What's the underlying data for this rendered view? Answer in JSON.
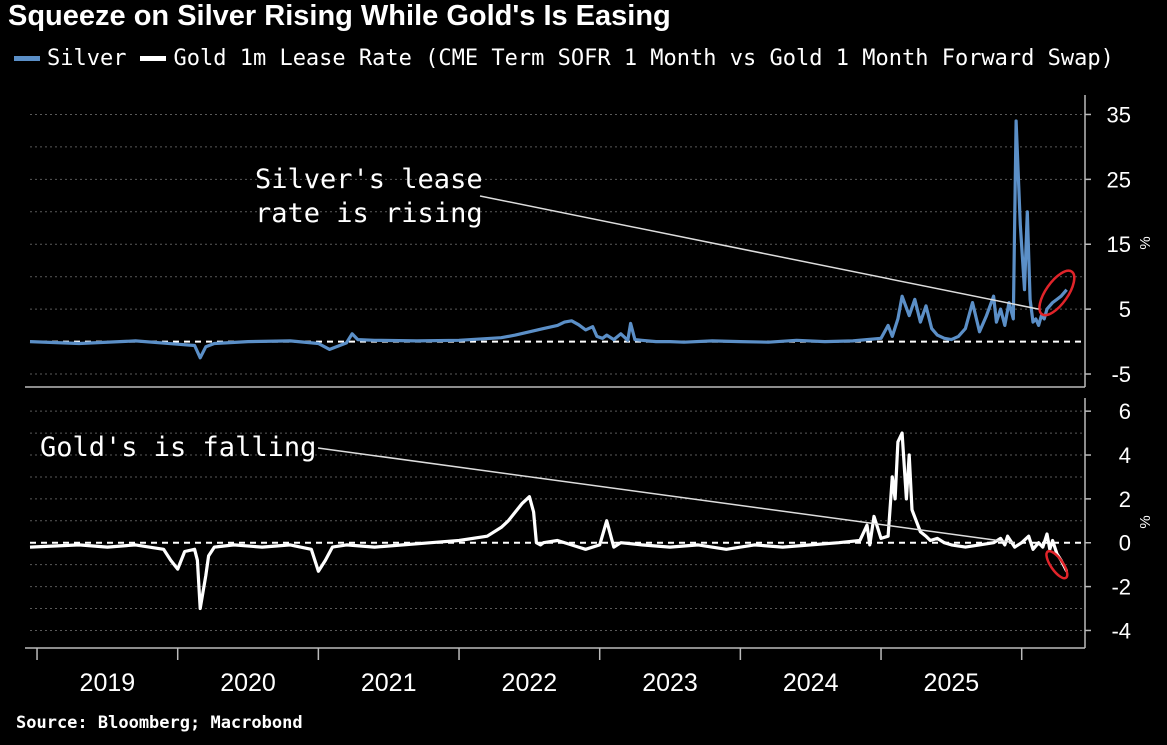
{
  "title": "Squeeze on Silver Rising While Gold's Is Easing",
  "legend": [
    {
      "label": "Silver",
      "color": "#5b8fc7"
    },
    {
      "label": "Gold 1m Lease Rate (CME Term SOFR 1 Month vs Gold 1 Month Forward Swap)",
      "color": "#ffffff"
    }
  ],
  "source": "Source: Bloomberg; Macrobond",
  "chart_data": [
    {
      "type": "line",
      "series_name": "Silver",
      "color": "#5b8fc7",
      "ylabel": "%",
      "ylim": [
        -7,
        38
      ],
      "yticks": [
        35,
        25,
        15,
        5,
        -5
      ],
      "zero_line": true,
      "grid": true,
      "annotation": {
        "line1": "Silver's lease",
        "line2": "rate is rising",
        "target": {
          "x": 2025.62,
          "y": 5.0
        }
      },
      "highlight": {
        "x": 2025.75,
        "y": 7.5
      },
      "x": [
        2018.45,
        2018.8,
        2019.2,
        2019.5,
        2019.62,
        2019.66,
        2019.7,
        2019.76,
        2020.0,
        2020.3,
        2020.5,
        2020.58,
        2020.7,
        2020.74,
        2020.78,
        2020.9,
        2021.2,
        2021.5,
        2021.8,
        2021.9,
        2022.0,
        2022.1,
        2022.2,
        2022.25,
        2022.3,
        2022.35,
        2022.4,
        2022.45,
        2022.48,
        2022.52,
        2022.55,
        2022.6,
        2022.65,
        2022.7,
        2022.72,
        2022.75,
        2022.8,
        2022.9,
        2023.0,
        2023.1,
        2023.3,
        2023.5,
        2023.7,
        2023.9,
        2024.1,
        2024.3,
        2024.5,
        2024.55,
        2024.58,
        2024.62,
        2024.65,
        2024.7,
        2024.74,
        2024.78,
        2024.82,
        2024.86,
        2024.9,
        2024.95,
        2025.0,
        2025.05,
        2025.1,
        2025.15,
        2025.2,
        2025.25,
        2025.3,
        2025.32,
        2025.35,
        2025.38,
        2025.41,
        2025.44,
        2025.46,
        2025.49,
        2025.52,
        2025.54,
        2025.56,
        2025.58,
        2025.6,
        2025.62,
        2025.64,
        2025.66,
        2025.68,
        2025.72,
        2025.75,
        2025.78,
        2025.82
      ],
      "y": [
        0,
        -0.3,
        0.1,
        -0.4,
        -0.6,
        -2.5,
        -0.8,
        -0.3,
        0,
        0.1,
        -0.3,
        -1.2,
        -0.2,
        1.2,
        0.3,
        0.2,
        0.1,
        0.2,
        0.6,
        1.0,
        1.5,
        2.0,
        2.5,
        3.0,
        3.2,
        2.6,
        1.8,
        2.3,
        0.8,
        0.5,
        1.0,
        0.3,
        1.2,
        0.2,
        2.8,
        0.3,
        0.2,
        0,
        0,
        -0.1,
        0.1,
        0,
        -0.1,
        0.2,
        0,
        0.1,
        0.5,
        2.5,
        0.8,
        3.5,
        7.0,
        4.0,
        6.5,
        3.0,
        5.5,
        2.0,
        1.0,
        0.5,
        0.3,
        0.8,
        2.0,
        6.0,
        1.5,
        4.0,
        7.0,
        3.0,
        5.0,
        2.5,
        6.0,
        3.5,
        34.0,
        18.0,
        8.0,
        20.0,
        6.5,
        3.0,
        3.5,
        2.5,
        4.0,
        3.5,
        5.0,
        6.0,
        6.5,
        7.0,
        8.0
      ]
    },
    {
      "type": "line",
      "series_name": "Gold 1m Lease Rate",
      "color": "#ffffff",
      "ylabel": "%",
      "ylim": [
        -4.8,
        6.6
      ],
      "yticks": [
        6,
        4,
        2,
        0,
        -2,
        -4
      ],
      "zero_line": true,
      "grid": true,
      "annotation": {
        "line1": "Gold's is falling",
        "target": {
          "x": 2025.45,
          "y": 0.0
        }
      },
      "highlight": {
        "x": 2025.75,
        "y": -1.0
      },
      "x": [
        2018.45,
        2018.8,
        2019.0,
        2019.2,
        2019.4,
        2019.45,
        2019.5,
        2019.55,
        2019.62,
        2019.64,
        2019.66,
        2019.7,
        2019.72,
        2019.76,
        2019.9,
        2020.1,
        2020.3,
        2020.45,
        2020.5,
        2020.55,
        2020.6,
        2020.7,
        2020.9,
        2021.1,
        2021.3,
        2021.5,
        2021.7,
        2021.8,
        2021.85,
        2021.9,
        2021.95,
        2022.0,
        2022.03,
        2022.05,
        2022.08,
        2022.1,
        2022.2,
        2022.35,
        2022.4,
        2022.5,
        2022.55,
        2022.6,
        2022.65,
        2022.8,
        2023.0,
        2023.2,
        2023.4,
        2023.6,
        2023.8,
        2024.0,
        2024.2,
        2024.35,
        2024.4,
        2024.42,
        2024.45,
        2024.5,
        2024.55,
        2024.58,
        2024.6,
        2024.62,
        2024.65,
        2024.68,
        2024.7,
        2024.72,
        2024.75,
        2024.78,
        2024.82,
        2024.85,
        2024.9,
        2024.95,
        2025.0,
        2025.1,
        2025.2,
        2025.3,
        2025.35,
        2025.38,
        2025.4,
        2025.45,
        2025.5,
        2025.55,
        2025.58,
        2025.62,
        2025.65,
        2025.68,
        2025.7,
        2025.72,
        2025.75,
        2025.78,
        2025.82
      ],
      "y": [
        -0.2,
        -0.1,
        -0.2,
        -0.1,
        -0.3,
        -0.8,
        -1.2,
        -0.4,
        -0.3,
        -0.8,
        -3.0,
        -1.5,
        -0.6,
        -0.2,
        -0.1,
        -0.2,
        -0.1,
        -0.3,
        -1.3,
        -0.8,
        -0.2,
        -0.1,
        -0.2,
        -0.1,
        0,
        0.1,
        0.3,
        0.7,
        1.0,
        1.4,
        1.8,
        2.1,
        1.4,
        0,
        -0.1,
        0,
        0.1,
        -0.2,
        -0.3,
        -0.1,
        1.0,
        -0.2,
        0,
        -0.1,
        -0.2,
        -0.1,
        -0.3,
        -0.1,
        -0.2,
        -0.1,
        0,
        0.1,
        0.8,
        -0.1,
        1.2,
        0.2,
        0.3,
        3.0,
        2.0,
        4.6,
        5.0,
        2.0,
        4.0,
        1.5,
        1.0,
        0.5,
        0.3,
        0.1,
        0.2,
        0,
        -0.1,
        -0.2,
        -0.1,
        0,
        0.2,
        -0.1,
        0.3,
        -0.2,
        0,
        0.3,
        -0.3,
        0,
        -0.2,
        0.4,
        -0.3,
        0.1,
        -0.5,
        -0.8,
        -1.3
      ]
    }
  ],
  "xaxis": {
    "labels": [
      "2019",
      "2020",
      "2021",
      "2022",
      "2023",
      "2024",
      "2025"
    ],
    "label_x": [
      2019.0,
      2020.0,
      2021.0,
      2022.0,
      2023.0,
      2024.0,
      2025.0
    ]
  }
}
